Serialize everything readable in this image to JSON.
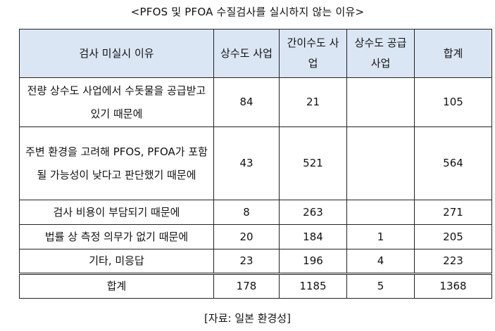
{
  "title": "<PFOS 및 PFOA 수질검사를 실시하지 않는 이유>",
  "headers": [
    "검사 미실시 이유",
    "상수도 사업",
    "간이수도 사업",
    "상수도 공급 사업",
    "합계"
  ],
  "rows": [
    {
      "reason": "전량 상수도 사업에서 수돗물을 공급받고 있기 때문에",
      "water_supply": "84",
      "simple_water": "21",
      "bulk_supply": "",
      "total": "105"
    },
    {
      "reason": "주변 환경을 고려해 PFOS, PFOA가 포함될 가능성이 낮다고 판단했기 때문에",
      "water_supply": "43",
      "simple_water": "521",
      "bulk_supply": "",
      "total": "564"
    },
    {
      "reason": "검사 비용이 부담되기 때문에",
      "water_supply": "8",
      "simple_water": "263",
      "bulk_supply": "",
      "total": "271"
    },
    {
      "reason": "법률 상 측정 의무가 없기 때문에",
      "water_supply": "20",
      "simple_water": "184",
      "bulk_supply": "1",
      "total": "205"
    },
    {
      "reason": "기타, 미응답",
      "water_supply": "23",
      "simple_water": "196",
      "bulk_supply": "4",
      "total": "223"
    }
  ],
  "total_row": {
    "label": "합계",
    "water_supply": "178",
    "simple_water": "1185",
    "bulk_supply": "5",
    "total": "1368"
  },
  "source": "[자료: 일본 환경성]"
}
